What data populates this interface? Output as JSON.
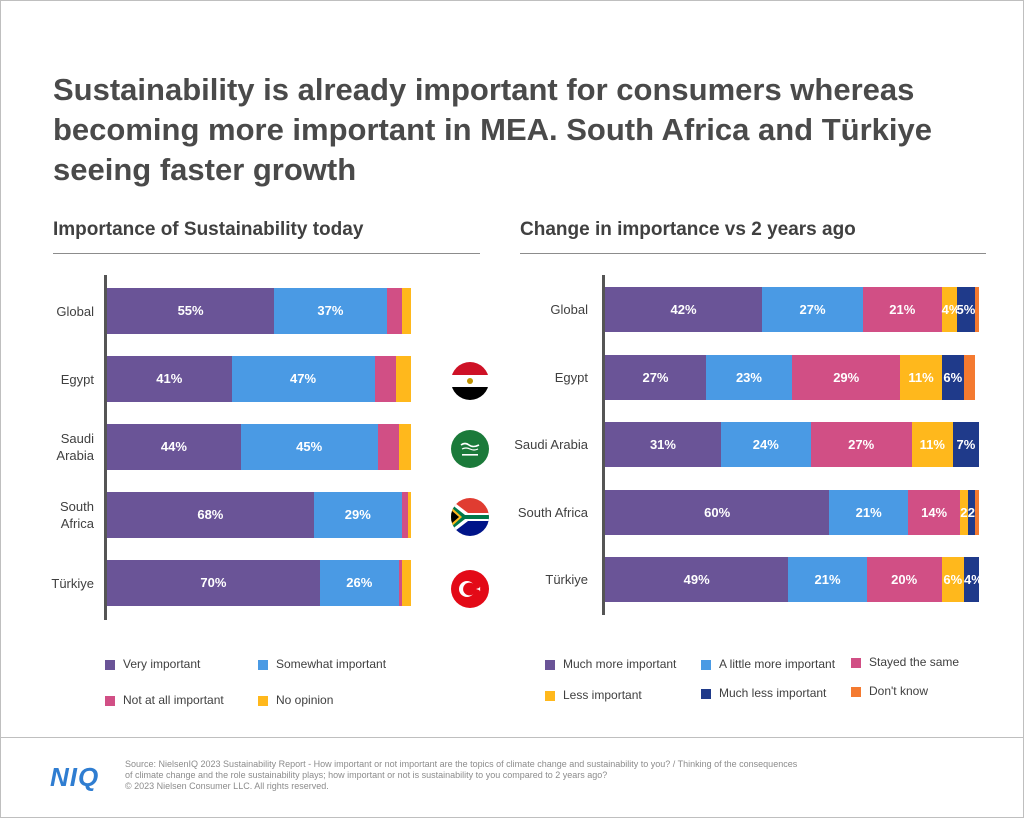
{
  "title": "Sustainability is already important for consumers whereas becoming more important in MEA. South Africa and Türkiye seeing faster growth",
  "logo": "NIQ",
  "source_line1": "Source: NielsenIQ 2023 Sustainability Report - How important or not important are the topics of climate change and sustainability to you? / Thinking of the consequences",
  "source_line2": "of climate change and the role sustainability plays; how important or not is sustainability to you compared to 2 years ago?",
  "source_line3": "© 2023 Nielsen Consumer LLC. All rights reserved.",
  "flags": [
    {
      "country": "Egypt",
      "icon": "egypt-flag-icon"
    },
    {
      "country": "Saudi Arabia",
      "icon": "saudi-arabia-flag-icon"
    },
    {
      "country": "South Africa",
      "icon": "south-africa-flag-icon"
    },
    {
      "country": "Türkiye",
      "icon": "turkiye-flag-icon"
    }
  ],
  "chart_data": [
    {
      "type": "bar",
      "orientation": "horizontal",
      "stacked": true,
      "title": "Importance of Sustainability today",
      "categories": [
        "Global",
        "Egypt",
        "Saudi\nArabia",
        "South\nAfrica",
        "Türkiye"
      ],
      "xlim": [
        0,
        100
      ],
      "series": [
        {
          "name": "Very important",
          "color": "#6a5497",
          "values": [
            55,
            41,
            44,
            68,
            70
          ]
        },
        {
          "name": "Somewhat important",
          "color": "#4a9ae4",
          "values": [
            37,
            47,
            45,
            29,
            26
          ]
        },
        {
          "name": "Not at all important",
          "color": "#d14f85",
          "values": [
            5,
            7,
            7,
            2,
            1
          ]
        },
        {
          "name": "No opinion",
          "color": "#ffb81c",
          "values": [
            3,
            5,
            4,
            1,
            3
          ]
        }
      ],
      "labels_shown_for_series": [
        0,
        1
      ],
      "legend_columns": 2
    },
    {
      "type": "bar",
      "orientation": "horizontal",
      "stacked": true,
      "title": "Change in importance vs 2 years ago",
      "categories": [
        "Global",
        "Egypt",
        "Saudi Arabia",
        "South Africa",
        "Türkiye"
      ],
      "xlim": [
        0,
        100
      ],
      "series": [
        {
          "name": "Much more important",
          "color": "#6a5497",
          "values": [
            42,
            27,
            31,
            60,
            49
          ]
        },
        {
          "name": "A little more important",
          "color": "#4a9ae4",
          "values": [
            27,
            23,
            24,
            21,
            21
          ]
        },
        {
          "name": "Stayed the same",
          "color": "#d14f85",
          "values": [
            21,
            29,
            27,
            14,
            20
          ]
        },
        {
          "name": "Less important",
          "color": "#ffb81c",
          "values": [
            4,
            11,
            11,
            2,
            6
          ]
        },
        {
          "name": "Much less important",
          "color": "#1f3a8a",
          "values": [
            5,
            6,
            7,
            2,
            4
          ]
        },
        {
          "name": "Don't know",
          "color": "#f47a30",
          "values": [
            1,
            3,
            0,
            1,
            0
          ]
        }
      ],
      "labels_shown_for_series": [
        0,
        1,
        2,
        3,
        4
      ],
      "legend_columns": 3
    }
  ]
}
